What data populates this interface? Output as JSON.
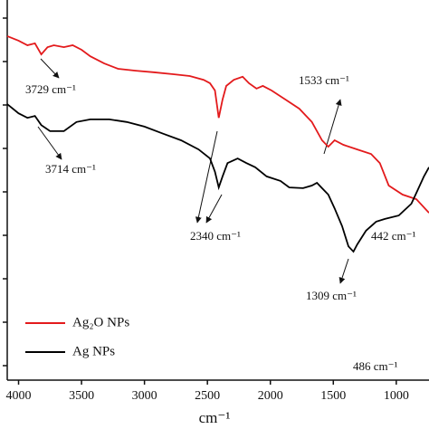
{
  "chart_data": {
    "type": "line",
    "xlabel": "cm⁻¹",
    "xlim": [
      4090,
      740
    ],
    "ylim": [
      0,
      100
    ],
    "xticks": [
      4000,
      3500,
      3000,
      2500,
      2000,
      1500,
      1000
    ],
    "series": [
      {
        "name": "Ag₂O NPs",
        "color": "#e31a1c",
        "x": [
          4090,
          4000,
          3930,
          3870,
          3820,
          3770,
          3720,
          3640,
          3570,
          3500,
          3430,
          3320,
          3210,
          3070,
          2930,
          2780,
          2640,
          2530,
          2480,
          2440,
          2410,
          2380,
          2350,
          2290,
          2220,
          2170,
          2110,
          2060,
          1990,
          1880,
          1770,
          1670,
          1590,
          1540,
          1490,
          1420,
          1310,
          1200,
          1130,
          1060,
          950,
          840,
          740
        ],
        "values": [
          90.5,
          89.3,
          88.1,
          88.6,
          85.7,
          87.6,
          88.1,
          87.6,
          88.1,
          86.9,
          85.2,
          83.3,
          81.9,
          81.4,
          81.0,
          80.5,
          80.0,
          79.0,
          78.1,
          76.2,
          69.0,
          73.8,
          77.4,
          79.0,
          79.8,
          78.1,
          76.7,
          77.4,
          76.2,
          73.8,
          71.4,
          67.9,
          63.1,
          61.4,
          63.1,
          61.9,
          60.7,
          59.5,
          57.1,
          51.2,
          48.8,
          47.6,
          44.0
        ]
      },
      {
        "name": "Ag NPs",
        "color": "#000000",
        "x": [
          4090,
          4000,
          3930,
          3870,
          3820,
          3750,
          3640,
          3540,
          3430,
          3280,
          3140,
          3000,
          2850,
          2710,
          2570,
          2480,
          2440,
          2410,
          2380,
          2340,
          2260,
          2190,
          2120,
          2030,
          1920,
          1850,
          1740,
          1670,
          1630,
          1590,
          1540,
          1490,
          1430,
          1380,
          1340,
          1310,
          1240,
          1160,
          1090,
          980,
          880,
          830,
          780,
          740
        ],
        "values": [
          72.6,
          70.2,
          69.0,
          69.5,
          67.1,
          65.5,
          65.5,
          67.9,
          68.6,
          68.6,
          67.9,
          66.7,
          64.8,
          63.1,
          60.7,
          58.3,
          54.8,
          50.7,
          53.6,
          57.1,
          58.3,
          57.1,
          56.0,
          53.6,
          52.4,
          50.7,
          50.5,
          51.2,
          51.9,
          50.5,
          48.8,
          45.2,
          40.5,
          35.2,
          33.8,
          35.7,
          39.3,
          41.7,
          42.4,
          43.3,
          46.4,
          50.0,
          53.6,
          56.0
        ]
      }
    ],
    "annotations": [
      "3729 cm⁻¹",
      "3714 cm⁻¹",
      "2340 cm⁻¹",
      "1533 cm⁻¹",
      "1309 cm⁻¹",
      "442 cm⁻¹",
      "486 cm⁻¹"
    ]
  }
}
